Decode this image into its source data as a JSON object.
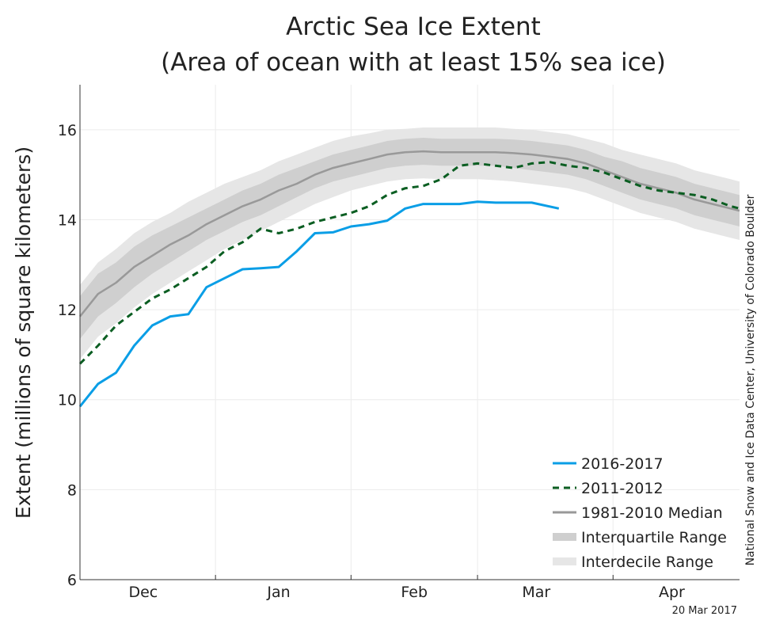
{
  "chart_data": {
    "type": "line",
    "title": "Arctic Sea Ice Extent",
    "subtitle": "(Area of ocean with at least 15% sea ice)",
    "ylabel": "Extent (millions of square kilometers)",
    "xlabel": "",
    "ylim": [
      6,
      17
    ],
    "xlim": [
      0,
      146
    ],
    "y_ticks": [
      6,
      8,
      10,
      12,
      14,
      16
    ],
    "x_month_labels": [
      {
        "label": "Dec",
        "x": 14
      },
      {
        "label": "Jan",
        "x": 44
      },
      {
        "label": "Feb",
        "x": 74
      },
      {
        "label": "Mar",
        "x": 101
      },
      {
        "label": "Apr",
        "x": 131
      }
    ],
    "x_month_boundaries": [
      30,
      60,
      88,
      118
    ],
    "grid": true,
    "legend_position": "bottom-right",
    "credit": "National Snow and Ice Data Center, University of Colorado Boulder",
    "date_stamp": "20 Mar 2017",
    "colors": {
      "s2016": "#0a9ee6",
      "s2011": "#0b5e22",
      "median": "#999999",
      "iqr": "#cfcfcf",
      "idr": "#e6e6e6"
    },
    "series": [
      {
        "name": "2016-2017",
        "style": "solid",
        "x": [
          0,
          4,
          8,
          12,
          16,
          20,
          24,
          28,
          32,
          36,
          40,
          44,
          48,
          52,
          56,
          60,
          64,
          68,
          72,
          76,
          80,
          84,
          88,
          92,
          96,
          100,
          106
        ],
        "y": [
          9.85,
          10.35,
          10.6,
          11.2,
          11.65,
          11.85,
          11.9,
          12.5,
          12.7,
          12.9,
          12.92,
          12.95,
          13.3,
          13.7,
          13.72,
          13.85,
          13.9,
          13.98,
          14.25,
          14.35,
          14.35,
          14.35,
          14.4,
          14.38,
          14.38,
          14.38,
          14.25
        ]
      },
      {
        "name": "2011-2012",
        "style": "dashed",
        "x": [
          0,
          4,
          8,
          12,
          16,
          20,
          24,
          28,
          32,
          36,
          40,
          44,
          48,
          52,
          56,
          60,
          64,
          68,
          72,
          76,
          80,
          84,
          88,
          92,
          96,
          100,
          104,
          108,
          112,
          116,
          120,
          124,
          128,
          132,
          136,
          140,
          144,
          146
        ],
        "y": [
          10.8,
          11.2,
          11.65,
          11.95,
          12.25,
          12.45,
          12.7,
          12.95,
          13.3,
          13.5,
          13.8,
          13.7,
          13.8,
          13.95,
          14.05,
          14.15,
          14.3,
          14.55,
          14.7,
          14.75,
          14.9,
          15.2,
          15.25,
          15.2,
          15.15,
          15.25,
          15.28,
          15.2,
          15.15,
          15.05,
          14.9,
          14.75,
          14.65,
          14.6,
          14.55,
          14.45,
          14.3,
          14.25
        ]
      },
      {
        "name": "1981-2010 Median",
        "style": "solid",
        "x": [
          0,
          4,
          8,
          12,
          16,
          20,
          24,
          28,
          32,
          36,
          40,
          44,
          48,
          52,
          56,
          60,
          64,
          68,
          72,
          76,
          80,
          84,
          88,
          92,
          96,
          100,
          104,
          108,
          112,
          116,
          120,
          124,
          128,
          132,
          136,
          140,
          144,
          146
        ],
        "y": [
          11.85,
          12.35,
          12.6,
          12.95,
          13.2,
          13.45,
          13.65,
          13.9,
          14.1,
          14.3,
          14.45,
          14.65,
          14.8,
          15.0,
          15.15,
          15.25,
          15.35,
          15.45,
          15.5,
          15.52,
          15.5,
          15.5,
          15.5,
          15.5,
          15.48,
          15.45,
          15.4,
          15.35,
          15.25,
          15.1,
          14.95,
          14.8,
          14.7,
          14.6,
          14.45,
          14.35,
          14.25,
          14.2
        ]
      },
      {
        "name": "Interquartile Range",
        "style": "band",
        "x": [
          0,
          4,
          8,
          12,
          16,
          20,
          24,
          28,
          32,
          36,
          40,
          44,
          48,
          52,
          56,
          60,
          64,
          68,
          72,
          76,
          80,
          84,
          88,
          92,
          96,
          100,
          104,
          108,
          112,
          116,
          120,
          124,
          128,
          132,
          136,
          140,
          144,
          146
        ],
        "lower": [
          11.35,
          11.85,
          12.15,
          12.5,
          12.8,
          13.05,
          13.3,
          13.55,
          13.75,
          13.95,
          14.1,
          14.3,
          14.5,
          14.7,
          14.85,
          14.95,
          15.05,
          15.15,
          15.2,
          15.22,
          15.2,
          15.2,
          15.2,
          15.2,
          15.15,
          15.1,
          15.05,
          15.0,
          14.9,
          14.75,
          14.6,
          14.45,
          14.35,
          14.25,
          14.1,
          14.0,
          13.9,
          13.85
        ],
        "upper": [
          12.3,
          12.8,
          13.05,
          13.4,
          13.65,
          13.85,
          14.05,
          14.25,
          14.45,
          14.65,
          14.8,
          15.0,
          15.15,
          15.3,
          15.45,
          15.55,
          15.65,
          15.75,
          15.8,
          15.82,
          15.8,
          15.8,
          15.8,
          15.8,
          15.78,
          15.75,
          15.7,
          15.65,
          15.55,
          15.4,
          15.3,
          15.15,
          15.05,
          14.95,
          14.8,
          14.7,
          14.6,
          14.55
        ]
      },
      {
        "name": "Interdecile Range",
        "style": "band",
        "x": [
          0,
          4,
          8,
          12,
          16,
          20,
          24,
          28,
          32,
          36,
          40,
          44,
          48,
          52,
          56,
          60,
          64,
          68,
          72,
          76,
          80,
          84,
          88,
          92,
          96,
          100,
          104,
          108,
          112,
          116,
          120,
          124,
          128,
          132,
          136,
          140,
          144,
          146
        ],
        "lower": [
          10.9,
          11.4,
          11.7,
          12.05,
          12.35,
          12.6,
          12.85,
          13.1,
          13.35,
          13.55,
          13.75,
          13.95,
          14.15,
          14.35,
          14.5,
          14.65,
          14.75,
          14.85,
          14.9,
          14.92,
          14.9,
          14.9,
          14.9,
          14.88,
          14.85,
          14.8,
          14.75,
          14.7,
          14.6,
          14.45,
          14.3,
          14.15,
          14.05,
          13.95,
          13.8,
          13.7,
          13.6,
          13.55
        ],
        "upper": [
          12.55,
          13.05,
          13.35,
          13.7,
          13.95,
          14.15,
          14.4,
          14.6,
          14.8,
          14.95,
          15.1,
          15.3,
          15.45,
          15.6,
          15.75,
          15.85,
          15.92,
          16.0,
          16.02,
          16.05,
          16.05,
          16.05,
          16.05,
          16.05,
          16.02,
          16.0,
          15.95,
          15.9,
          15.8,
          15.7,
          15.55,
          15.45,
          15.35,
          15.25,
          15.1,
          15.0,
          14.9,
          14.85
        ]
      }
    ]
  }
}
